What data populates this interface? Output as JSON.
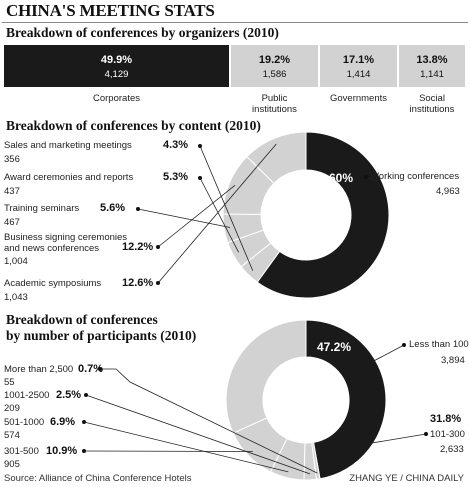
{
  "title": "CHINA'S MEETING STATS",
  "organizers": {
    "title": "Breakdown of conferences by organizers (2010)",
    "segments": [
      {
        "pct": "49.9%",
        "count": "4,129",
        "label": [
          "Corporates"
        ]
      },
      {
        "pct": "19.2%",
        "count": "1,586",
        "label": [
          "Public",
          "institutions"
        ]
      },
      {
        "pct": "17.1%",
        "count": "1,414",
        "label": [
          "Governments"
        ]
      },
      {
        "pct": "13.8%",
        "count": "1,141",
        "label": [
          "Social",
          "institutions"
        ]
      }
    ]
  },
  "content": {
    "title": "Breakdown of conferences by content (2010)",
    "items": [
      {
        "label": [
          "Working conferences"
        ],
        "pct": "60%",
        "count": "4,963"
      },
      {
        "label": [
          "Sales and marketing meetings"
        ],
        "pct": "4.3%",
        "count": "356"
      },
      {
        "label": [
          "Award ceremonies and reports"
        ],
        "pct": "5.3%",
        "count": "437"
      },
      {
        "label": [
          "Training seminars"
        ],
        "pct": "5.6%",
        "count": "467"
      },
      {
        "label": [
          "Business signing ceremonies",
          "and news conferences"
        ],
        "pct": "12.2%",
        "count": "1,004"
      },
      {
        "label": [
          "Academic symposiums"
        ],
        "pct": "12.6%",
        "count": "1,043"
      }
    ]
  },
  "participants": {
    "title": [
      "Breakdown of conferences",
      "by number of participants (2010)"
    ],
    "items": [
      {
        "label": "Less than 100",
        "pct": "47.2%",
        "count": "3,894"
      },
      {
        "label": "More than 2,500",
        "pct": "0.7%",
        "count": "55"
      },
      {
        "label": "1001-2500",
        "pct": "2.5%",
        "count": "209"
      },
      {
        "label": "501-1000",
        "pct": "6.9%",
        "count": "574"
      },
      {
        "label": "301-500",
        "pct": "10.9%",
        "count": "905"
      },
      {
        "label": "101-300",
        "pct": "31.8%",
        "count": "2,633"
      }
    ]
  },
  "footer": {
    "source": "Source: Alliance of China Conference Hotels",
    "credit": "ZHANG YE / CHINA DAILY"
  },
  "colors": {
    "dark": "#1a1a1a",
    "light": "#d2d2d2",
    "divider": "#ffffff"
  },
  "chart_data": [
    {
      "type": "bar",
      "title": "Breakdown of conferences by organizers (2010)",
      "categories": [
        "Corporates",
        "Public institutions",
        "Governments",
        "Social institutions"
      ],
      "values": [
        49.9,
        19.2,
        17.1,
        13.8
      ],
      "counts": [
        4129,
        1586,
        1414,
        1141
      ]
    },
    {
      "type": "pie",
      "title": "Breakdown of conferences by content (2010)",
      "categories": [
        "Working conferences",
        "Sales and marketing meetings",
        "Award ceremonies and reports",
        "Training seminars",
        "Business signing ceremonies and news conferences",
        "Academic symposiums"
      ],
      "values": [
        60,
        4.3,
        5.3,
        5.6,
        12.2,
        12.6
      ],
      "counts": [
        4963,
        356,
        437,
        467,
        1004,
        1043
      ]
    },
    {
      "type": "pie",
      "title": "Breakdown of conferences by number of participants (2010)",
      "categories": [
        "Less than 100",
        "More than 2,500",
        "1001-2500",
        "501-1000",
        "301-500",
        "101-300"
      ],
      "values": [
        47.2,
        0.7,
        2.5,
        6.9,
        10.9,
        31.8
      ],
      "counts": [
        3894,
        55,
        209,
        574,
        905,
        2633
      ]
    }
  ]
}
